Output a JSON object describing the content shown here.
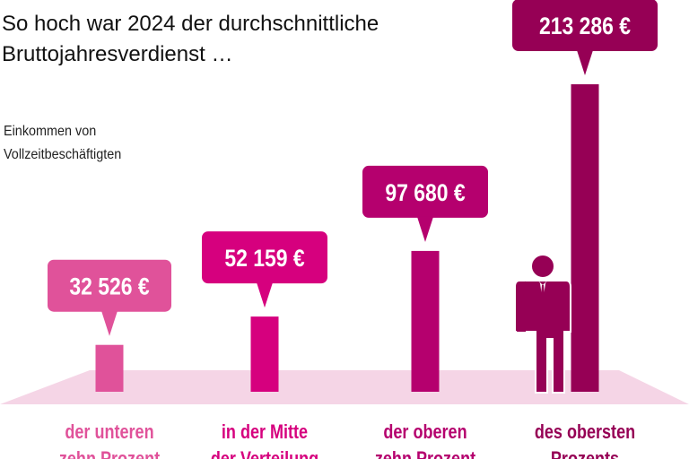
{
  "title_line1": "So hoch war 2024 der durchschnittliche",
  "title_line2": "Bruttojahresverdienst …",
  "subtitle_line1": "Einkommen von",
  "subtitle_line2": "Vollzeitbeschäftigten",
  "chart_data": {
    "type": "bar",
    "title": "So hoch war 2024 der durchschnittliche Bruttojahresverdienst …",
    "subtitle": "Einkommen von Vollzeitbeschäftigten",
    "unit": "€",
    "categories": [
      [
        "der unteren",
        "zehn Prozent"
      ],
      [
        "in der Mitte",
        "der Verteilung"
      ],
      [
        "der oberen",
        "zehn Prozent"
      ],
      [
        "des obersten",
        "Prozents"
      ]
    ],
    "values": [
      32526,
      52159,
      97680,
      213286
    ],
    "value_labels": [
      "32 526 €",
      "52 159 €",
      "97 680 €",
      "213 286 €"
    ],
    "colors": [
      "#e0529a",
      "#d6007e",
      "#b5006e",
      "#960055"
    ],
    "floor_color": "#f5d5e6",
    "icons": [
      "person-icon"
    ]
  }
}
